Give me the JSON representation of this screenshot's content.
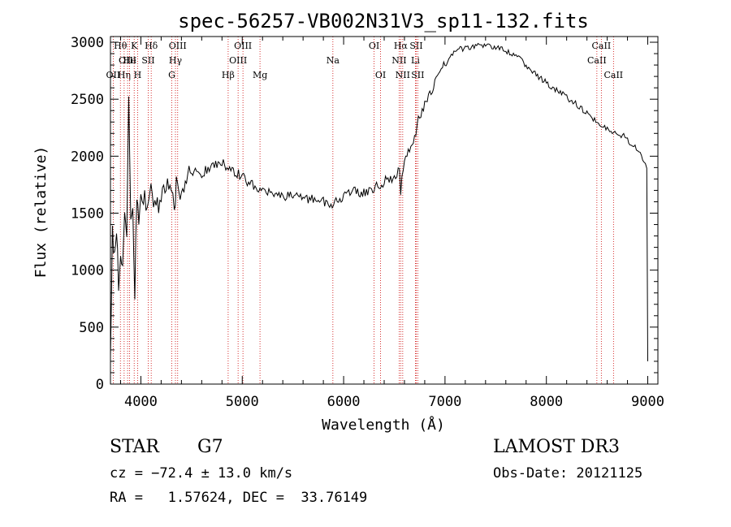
{
  "chart_data": {
    "type": "line",
    "title": "spec-56257-VB002N31V3_sp11-132.fits",
    "xlabel": "Wavelength (Å)",
    "ylabel": "Flux (relative)",
    "xlim": [
      3700,
      9100
    ],
    "ylim": [
      0,
      3050
    ],
    "x_ticks": [
      4000,
      5000,
      6000,
      7000,
      8000,
      9000
    ],
    "y_ticks": [
      0,
      500,
      1000,
      1500,
      2000,
      2500,
      3000
    ],
    "series": [
      {
        "name": "flux",
        "color": "#000000",
        "x": [
          3700,
          3720,
          3740,
          3760,
          3780,
          3800,
          3820,
          3840,
          3860,
          3880,
          3900,
          3920,
          3940,
          3960,
          3980,
          4000,
          4050,
          4100,
          4150,
          4200,
          4250,
          4300,
          4330,
          4350,
          4400,
          4450,
          4500,
          4600,
          4700,
          4800,
          4850,
          4900,
          5000,
          5100,
          5200,
          5300,
          5400,
          5500,
          5600,
          5700,
          5800,
          5900,
          6000,
          6100,
          6200,
          6300,
          6400,
          6500,
          6550,
          6563,
          6600,
          6650,
          6700,
          6750,
          6800,
          6850,
          6900,
          6950,
          7000,
          7050,
          7100,
          7150,
          7200,
          7300,
          7400,
          7500,
          7600,
          7700,
          7800,
          7900,
          8000,
          8100,
          8200,
          8300,
          8400,
          8500,
          8550,
          8600,
          8700,
          8750,
          8800,
          8850,
          8900,
          8950,
          8990,
          9000
        ],
        "y": [
          200,
          1350,
          1100,
          1400,
          900,
          1200,
          950,
          1500,
          1250,
          2500,
          1400,
          1600,
          800,
          1700,
          1500,
          1650,
          1600,
          1700,
          1550,
          1620,
          1750,
          1700,
          1450,
          1750,
          1700,
          1800,
          1850,
          1850,
          1920,
          1950,
          1900,
          1880,
          1820,
          1750,
          1700,
          1670,
          1640,
          1660,
          1640,
          1620,
          1600,
          1580,
          1650,
          1700,
          1680,
          1720,
          1780,
          1820,
          1880,
          1700,
          1980,
          2080,
          2180,
          2350,
          2450,
          2550,
          2650,
          2750,
          2800,
          2880,
          2920,
          2950,
          2940,
          2960,
          2980,
          2950,
          2920,
          2880,
          2800,
          2720,
          2640,
          2580,
          2520,
          2450,
          2380,
          2300,
          2280,
          2250,
          2200,
          2180,
          2150,
          2100,
          2050,
          1980,
          1900,
          200
        ]
      }
    ],
    "line_markers": [
      {
        "label": "OII",
        "wave": 3727,
        "row": 2
      },
      {
        "label": "Hθ",
        "wave": 3798,
        "row": 0
      },
      {
        "label": "Hη",
        "wave": 3835,
        "row": 2
      },
      {
        "label": "OIII",
        "wave": 3869,
        "row": 1
      },
      {
        "label": "He",
        "wave": 3889,
        "row": 1
      },
      {
        "label": "K",
        "wave": 3934,
        "row": 0
      },
      {
        "label": "H",
        "wave": 3968,
        "row": 2
      },
      {
        "label": "SII",
        "wave": 4072,
        "row": 1
      },
      {
        "label": "Hδ",
        "wave": 4102,
        "row": 0
      },
      {
        "label": "G",
        "wave": 4305,
        "row": 2
      },
      {
        "label": "Hγ",
        "wave": 4341,
        "row": 1
      },
      {
        "label": "OIII",
        "wave": 4363,
        "row": 0
      },
      {
        "label": "Hβ",
        "wave": 4861,
        "row": 2
      },
      {
        "label": "OIII",
        "wave": 4959,
        "row": 1
      },
      {
        "label": "OIII",
        "wave": 5007,
        "row": 0
      },
      {
        "label": "Mg",
        "wave": 5175,
        "row": 2
      },
      {
        "label": "Na",
        "wave": 5894,
        "row": 1
      },
      {
        "label": "OI",
        "wave": 6300,
        "row": 0
      },
      {
        "label": "OI",
        "wave": 6364,
        "row": 2
      },
      {
        "label": "NII",
        "wave": 6548,
        "row": 1
      },
      {
        "label": "Hα",
        "wave": 6563,
        "row": 0
      },
      {
        "label": "NII",
        "wave": 6583,
        "row": 2
      },
      {
        "label": "Li",
        "wave": 6708,
        "row": 1
      },
      {
        "label": "SII",
        "wave": 6716,
        "row": 0
      },
      {
        "label": "SII",
        "wave": 6731,
        "row": 2
      },
      {
        "label": "CaII",
        "wave": 8498,
        "row": 1
      },
      {
        "label": "CaII",
        "wave": 8542,
        "row": 0
      },
      {
        "label": "CaII",
        "wave": 8662,
        "row": 2
      }
    ]
  },
  "info": {
    "object_class": "STAR",
    "subclass": "G7",
    "cz_line": "cz = −72.4 ± 13.0 km/s",
    "radec_line": "RA =   1.57624, DEC =  33.76149",
    "survey": "LAMOST DR3",
    "obs_date": "Obs-Date: 20121125"
  },
  "colors": {
    "line_marker": "#cc0000",
    "spectrum": "#000000",
    "background": "#ffffff"
  }
}
